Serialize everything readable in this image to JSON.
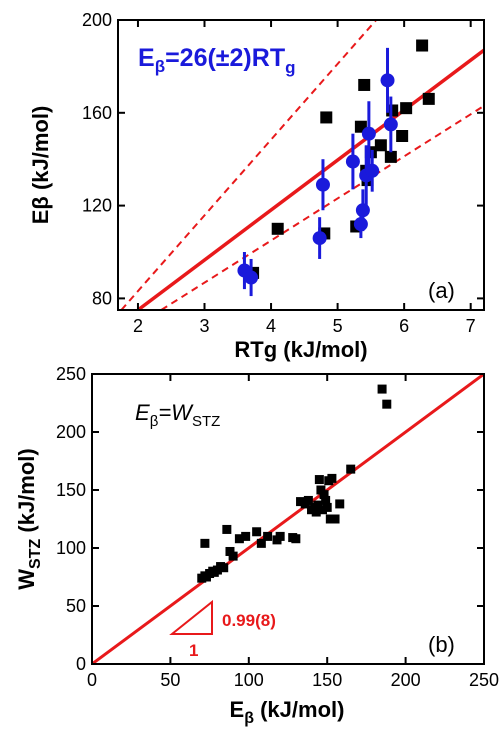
{
  "chart_data": [
    {
      "panel": "(a)",
      "type": "scatter",
      "xlabel_main": "RT",
      "xlabel_sub": "g",
      "xlabel_unit": " (kJ/mol)",
      "ylabel_main": "E",
      "ylabel_greek": "β",
      "ylabel_unit": " (kJ/mol)",
      "xlim": [
        1.7,
        7.2
      ],
      "ylim": [
        75,
        200
      ],
      "xticks": [
        2,
        3,
        4,
        5,
        6,
        7
      ],
      "yticks": [
        80,
        120,
        160,
        200
      ],
      "annotation": {
        "main": "E",
        "sub1": "β",
        "mid": "=26(±2)RT",
        "sub2": "g",
        "color": "#1a1adb"
      },
      "colors": {
        "squares": "#000000",
        "circles": "#1a1adb",
        "fit": "#e8191b"
      },
      "fit_line": {
        "slope": 26,
        "points": [
          [
            2.0,
            75
          ],
          [
            7.2,
            187
          ]
        ]
      },
      "upper_bound": {
        "points": [
          [
            1.75,
            75
          ],
          [
            5.58,
            200
          ]
        ]
      },
      "lower_bound": {
        "points": [
          [
            2.35,
            75
          ],
          [
            7.2,
            163
          ]
        ]
      },
      "series": [
        {
          "marker": "square",
          "x": [
            3.73,
            4.1,
            4.8,
            4.83,
            5.28,
            5.35,
            5.4,
            5.43,
            5.45,
            5.5,
            5.65,
            5.8,
            5.82,
            5.97,
            6.03,
            6.27,
            6.37
          ],
          "y": [
            91,
            110,
            108,
            158,
            111,
            154,
            172,
            135,
            131,
            143,
            146,
            141,
            161,
            150,
            162,
            189,
            166
          ]
        },
        {
          "marker": "circle",
          "x": [
            3.6,
            3.7,
            4.73,
            4.78,
            5.23,
            5.35,
            5.38,
            5.43,
            5.47,
            5.52,
            5.75,
            5.8
          ],
          "y": [
            92,
            89,
            106,
            129,
            139,
            112,
            118,
            133,
            151,
            135,
            174,
            155
          ],
          "err": [
            8,
            8,
            9,
            11,
            12,
            6,
            9,
            13,
            14,
            9,
            14,
            12
          ]
        }
      ]
    },
    {
      "panel": "(b)",
      "type": "scatter",
      "xlabel_main": "E",
      "xlabel_sub": "β",
      "xlabel_unit": " (kJ/mol)",
      "ylabel_main": "W",
      "ylabel_sub": "STZ",
      "ylabel_unit": " (kJ/mol)",
      "xlim": [
        0,
        250
      ],
      "ylim": [
        0,
        250
      ],
      "xticks": [
        0,
        50,
        100,
        150,
        200,
        250
      ],
      "yticks": [
        0,
        50,
        100,
        150,
        200,
        250
      ],
      "annotation": {
        "main": "E",
        "sub1": "β",
        "mid": "=W",
        "sub2": "STZ"
      },
      "colors": {
        "squares": "#000000",
        "fit": "#e8191b"
      },
      "fit_line": {
        "slope": 1,
        "points": [
          [
            0,
            0
          ],
          [
            250,
            250
          ]
        ]
      },
      "slope_triangle": {
        "label_slope": "0.99(8)",
        "label_run": "1",
        "color": "#e8191b"
      },
      "series": [
        {
          "marker": "square",
          "x": [
            70,
            72,
            73,
            75,
            77,
            78,
            80,
            84,
            86,
            88,
            90,
            94,
            98,
            105,
            108,
            112,
            118,
            120,
            128,
            130,
            133,
            136,
            138,
            140,
            142,
            143,
            144,
            145,
            146,
            147,
            148,
            149,
            150,
            151,
            152,
            153,
            155,
            158,
            165,
            185,
            188,
            72,
            82
          ],
          "y": [
            74,
            76,
            75,
            78,
            80,
            79,
            81,
            83,
            116,
            97,
            93,
            108,
            110,
            114,
            104,
            110,
            107,
            110,
            109,
            108,
            140,
            138,
            141,
            133,
            135,
            131,
            137,
            159,
            150,
            133,
            146,
            141,
            135,
            158,
            125,
            160,
            125,
            138,
            168,
            237,
            224,
            104,
            84
          ]
        }
      ]
    }
  ]
}
